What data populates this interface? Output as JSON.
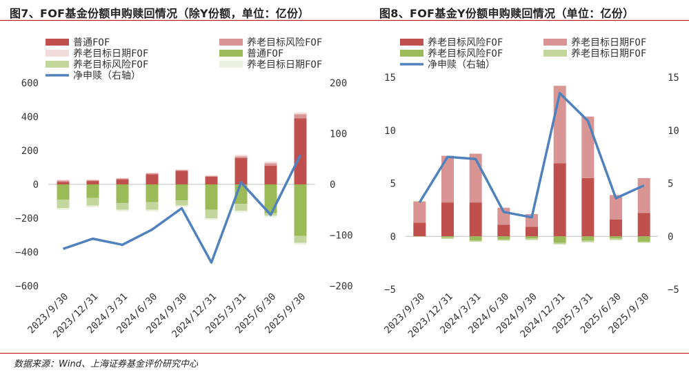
{
  "source": "数据来源：Wind、上海证券基金评价研究中心",
  "colors": {
    "pt": "#c0504d",
    "yl_risk": "#d99594",
    "yl_date": "#f2dcdb",
    "pt_bond": "#9bbb59",
    "yl_risk_bond": "#c3d69b",
    "yl_date_bond": "#ebf1de",
    "net": "#4f81bd",
    "title_rule": "#c00000"
  },
  "chart_data": [
    {
      "type": "bar",
      "title": "图7、FOF基金份额申购赎回情况（除Y份额，单位：亿份）",
      "categories": [
        "2023/9/30",
        "2023/12/31",
        "2024/3/31",
        "2024/6/30",
        "2024/9/30",
        "2024/12/31",
        "2025/3/31",
        "2025/6/30",
        "2025/9/30"
      ],
      "series": [
        {
          "name": "普通FOF",
          "color_key": "pt",
          "values": [
            15,
            20,
            30,
            60,
            80,
            45,
            155,
            110,
            390
          ]
        },
        {
          "name": "养老目标风险FOF",
          "color_key": "yl_risk",
          "values": [
            8,
            5,
            5,
            5,
            5,
            5,
            10,
            15,
            25
          ]
        },
        {
          "name": "养老目标日期FOF",
          "color_key": "yl_date",
          "values": [
            5,
            5,
            3,
            5,
            3,
            5,
            10,
            10,
            10
          ]
        },
        {
          "name": "普通FOF",
          "color_key": "pt_bond",
          "values": [
            -90,
            -80,
            -110,
            -105,
            -95,
            -150,
            -115,
            -170,
            -305
          ]
        },
        {
          "name": "养老目标风险FOF",
          "color_key": "yl_risk_bond",
          "values": [
            -50,
            -45,
            -40,
            -45,
            -30,
            -50,
            -40,
            -15,
            -40
          ]
        },
        {
          "name": "养老目标日期FOF",
          "color_key": "yl_date_bond",
          "values": [
            -10,
            -10,
            -10,
            -10,
            -10,
            -10,
            -10,
            -10,
            -10
          ]
        },
        {
          "name": "净申赎（右轴）",
          "type": "line",
          "axis": "right",
          "color_key": "net",
          "values": [
            -127,
            -107,
            -119,
            -89,
            -47,
            -154,
            4,
            -60,
            58
          ]
        }
      ],
      "ylim": [
        -600,
        600
      ],
      "yticks": [
        "600",
        "400",
        "200",
        "0",
        "−200",
        "−400",
        "−600"
      ],
      "y2lim": [
        -200,
        200
      ],
      "y2ticks": [
        "200",
        "100",
        "0",
        "−100",
        "−200"
      ],
      "legend": "top"
    },
    {
      "type": "bar",
      "title": "图8、FOF基金Y份额申购赎回情况（单位：亿份）",
      "categories": [
        "2023/9/30",
        "2023/12/31",
        "2024/3/31",
        "2024/6/30",
        "2024/9/30",
        "2024/12/31",
        "2025/3/31",
        "2025/6/30",
        "2025/9/30"
      ],
      "series": [
        {
          "name": "养老目标风险FOF",
          "color_key": "pt",
          "values": [
            1.3,
            3.2,
            3.2,
            1.1,
            0.9,
            6.9,
            5.5,
            1.6,
            2.2
          ]
        },
        {
          "name": "养老目标日期FOF",
          "color_key": "yl_risk",
          "values": [
            2.0,
            4.4,
            4.6,
            1.6,
            1.2,
            7.3,
            5.8,
            2.3,
            3.3
          ]
        },
        {
          "name": "养老目标风险FOF",
          "color_key": "pt_bond",
          "values": [
            0,
            -0.1,
            -0.4,
            -0.3,
            -0.2,
            -0.6,
            -0.4,
            -0.2,
            -0.5
          ]
        },
        {
          "name": "养老目标日期FOF",
          "color_key": "yl_risk_bond",
          "values": [
            -0.05,
            -0.15,
            -0.1,
            -0.1,
            -0.15,
            -0.15,
            -0.15,
            -0.15,
            -0.1
          ]
        },
        {
          "name": "净申赎（右轴）",
          "type": "line",
          "axis": "right",
          "color_key": "net",
          "values": [
            3.2,
            7.5,
            7.3,
            2.3,
            1.8,
            13.5,
            10.9,
            3.6,
            4.8
          ]
        }
      ],
      "ylim": [
        -5,
        15
      ],
      "yticks": [
        "15",
        "10",
        "5",
        "0",
        "−5"
      ],
      "y2lim": [
        -5,
        15
      ],
      "y2ticks": [
        "15",
        "10",
        "5",
        "0",
        "−5"
      ],
      "legend": "top"
    }
  ]
}
